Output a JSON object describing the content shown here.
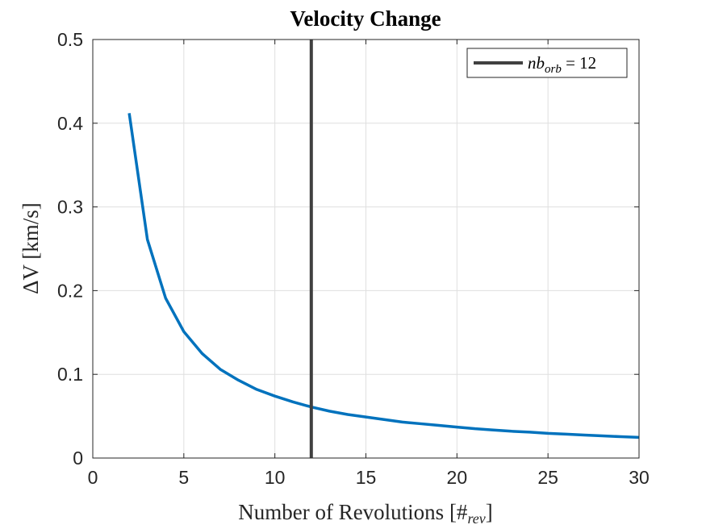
{
  "chart_data": {
    "type": "line",
    "title": "Velocity Change",
    "xlabel": "Number of Revolutions [#rev]",
    "xlabel_main": "Number of Revolutions [#",
    "xlabel_sub": "rev",
    "xlabel_close": "]",
    "ylabel": "ΔV [km/s]",
    "xlim": [
      0,
      30
    ],
    "ylim": [
      0,
      0.5
    ],
    "xticks": [
      0,
      5,
      10,
      15,
      20,
      25,
      30
    ],
    "yticks": [
      0,
      0.1,
      0.2,
      0.3,
      0.4,
      0.5
    ],
    "xtick_labels": [
      "0",
      "5",
      "10",
      "15",
      "20",
      "25",
      "30"
    ],
    "ytick_labels": [
      "0",
      "0.1",
      "0.2",
      "0.3",
      "0.4",
      "0.5"
    ],
    "grid": true,
    "legend_position": "top-right",
    "series": [
      {
        "color": "#0072BD",
        "x": [
          2,
          3,
          4,
          5,
          6,
          7,
          8,
          9,
          10,
          11,
          12,
          13,
          14,
          15,
          16,
          17,
          18,
          19,
          20,
          21,
          22,
          23,
          24,
          25,
          26,
          27,
          28,
          29,
          30
        ],
        "y": [
          0.412,
          0.261,
          0.191,
          0.151,
          0.125,
          0.106,
          0.093,
          0.082,
          0.074,
          0.067,
          0.061,
          0.056,
          0.052,
          0.049,
          0.046,
          0.043,
          0.041,
          0.039,
          0.037,
          0.035,
          0.0335,
          0.032,
          0.031,
          0.0295,
          0.0285,
          0.0275,
          0.0265,
          0.0255,
          0.0247
        ]
      }
    ],
    "vertical_line": {
      "x": 12,
      "color": "#404040",
      "label_main": "nb",
      "label_sub": "orb",
      "label_rest": " = 12"
    }
  }
}
